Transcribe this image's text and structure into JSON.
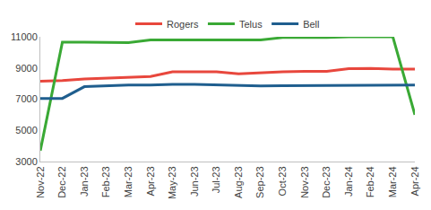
{
  "chart_data": {
    "type": "line",
    "categories": [
      "Nov-22",
      "Dec-22",
      "Jan-23",
      "Feb-23",
      "Mar-23",
      "Apr-23",
      "May-23",
      "Jun-23",
      "Jul-23",
      "Aug-23",
      "Sep-23",
      "Oct-23",
      "Nov-23",
      "Dec-23",
      "Jan-24",
      "Feb-24",
      "Mar-24",
      "Apr-24"
    ],
    "series": [
      {
        "name": "Rogers",
        "color": "#e8473d",
        "values": [
          8150,
          8200,
          8300,
          8350,
          8380,
          8450,
          8750,
          8750,
          8750,
          8620,
          8700,
          8750,
          8780,
          8780,
          8950,
          8970,
          8930,
          8930
        ]
      },
      {
        "name": "Telus",
        "color": "#3aa935",
        "values": [
          3700,
          10650,
          10650,
          10620,
          10620,
          10800,
          10800,
          10800,
          10800,
          10800,
          10800,
          10950,
          10950,
          10950,
          11000,
          11000,
          11000,
          6000
        ]
      },
      {
        "name": "Bell",
        "color": "#1f5e8e",
        "values": [
          7050,
          7050,
          7800,
          7850,
          7900,
          7900,
          7950,
          7950,
          7920,
          7900,
          7850,
          7870,
          7870,
          7870,
          7900,
          7900,
          7900,
          7900
        ]
      }
    ],
    "ylim": [
      3000,
      11000
    ],
    "yticks": [
      3000,
      5000,
      7000,
      9000,
      11000
    ],
    "grid": false,
    "legend": "top"
  }
}
